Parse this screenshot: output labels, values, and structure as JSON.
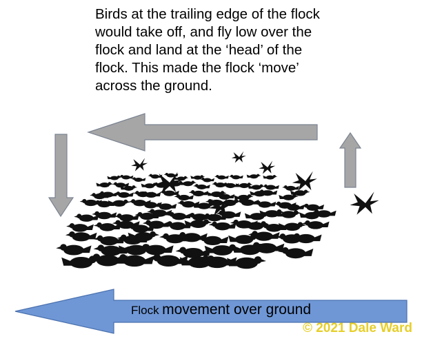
{
  "caption": {
    "lines": [
      "Birds at the trailing edge of the flock",
      "would take off, and fly low over the",
      "flock and land at the ‘head’ of the",
      "flock. This made the flock ‘move’",
      "across the ground."
    ]
  },
  "ground_arrow": {
    "label_small": "Flock",
    "label_big": "movement over ground",
    "fill": "#6f97d6",
    "stroke": "#4a70ad"
  },
  "cycle_arrows": {
    "fill": "#a6a6a6",
    "stroke": "#7b8391"
  },
  "flock": {
    "color": "#111111"
  },
  "copyright": "© 2021 Dale Ward",
  "colors": {
    "copyright": "#e6cf2b",
    "text": "#000000",
    "background": "#ffffff"
  }
}
